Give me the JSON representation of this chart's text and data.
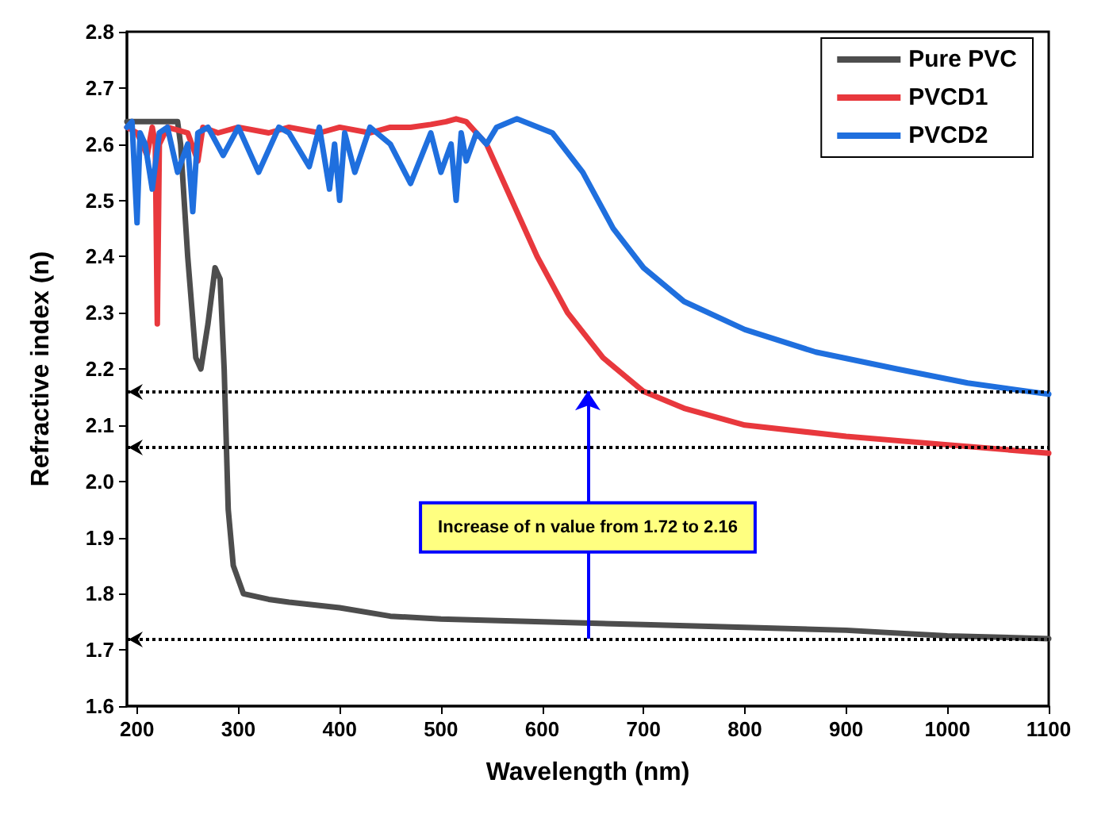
{
  "chart_data": {
    "type": "line",
    "xlabel": "Wavelength (nm)",
    "ylabel": "Refractive index (n)",
    "xlim": [
      190,
      1100
    ],
    "xticks": [
      200,
      300,
      400,
      500,
      600,
      700,
      800,
      900,
      1000,
      1100
    ],
    "ylim": [
      1.6,
      2.8
    ],
    "yticks": [
      1.6,
      1.7,
      1.8,
      1.9,
      {
        "value": 2,
        "label": "2.0"
      },
      2.1,
      2.2,
      2.3,
      2.4,
      2.5,
      2.6,
      2.7,
      2.8
    ],
    "grid": false,
    "legend": "top right",
    "marker": "none",
    "line_style": "solid",
    "series": [
      {
        "name": "Pure PVC",
        "color": "#4d4d4d",
        "x": [
          190,
          200,
          215,
          230,
          240,
          243,
          250,
          258,
          263,
          270,
          277,
          282,
          286,
          290,
          295,
          305,
          330,
          350,
          400,
          450,
          500,
          600,
          700,
          800,
          900,
          1000,
          1100
        ],
        "values": [
          2.64,
          2.64,
          2.64,
          2.64,
          2.64,
          2.6,
          2.4,
          2.22,
          2.2,
          2.28,
          2.38,
          2.36,
          2.2,
          1.95,
          1.85,
          1.8,
          1.79,
          1.785,
          1.775,
          1.76,
          1.755,
          1.75,
          1.745,
          1.74,
          1.735,
          1.725,
          1.72
        ]
      },
      {
        "name": "PVCD1",
        "color": "#e8383d",
        "x": [
          190,
          200,
          210,
          215,
          218,
          220,
          222,
          230,
          250,
          260,
          265,
          280,
          300,
          330,
          350,
          380,
          400,
          430,
          450,
          470,
          490,
          505,
          515,
          525,
          535,
          545,
          570,
          595,
          625,
          660,
          700,
          740,
          800,
          900,
          1000,
          1100
        ],
        "values": [
          2.63,
          2.62,
          2.58,
          2.63,
          2.6,
          2.28,
          2.6,
          2.63,
          2.62,
          2.57,
          2.63,
          2.62,
          2.63,
          2.62,
          2.63,
          2.62,
          2.63,
          2.62,
          2.63,
          2.63,
          2.635,
          2.64,
          2.645,
          2.64,
          2.62,
          2.6,
          2.5,
          2.4,
          2.3,
          2.22,
          2.16,
          2.13,
          2.1,
          2.08,
          2.065,
          2.05
        ]
      },
      {
        "name": "PVCD2",
        "color": "#1f6fde",
        "x": [
          190,
          195,
          200,
          203,
          208,
          215,
          222,
          230,
          240,
          250,
          255,
          260,
          270,
          285,
          300,
          320,
          340,
          350,
          370,
          380,
          390,
          395,
          400,
          405,
          415,
          430,
          450,
          470,
          490,
          500,
          510,
          515,
          520,
          525,
          535,
          545,
          555,
          575,
          610,
          640,
          670,
          700,
          740,
          800,
          870,
          950,
          1020,
          1100
        ],
        "values": [
          2.63,
          2.64,
          2.46,
          2.62,
          2.6,
          2.52,
          2.62,
          2.63,
          2.55,
          2.6,
          2.48,
          2.62,
          2.63,
          2.58,
          2.63,
          2.55,
          2.63,
          2.62,
          2.56,
          2.63,
          2.52,
          2.6,
          2.5,
          2.62,
          2.55,
          2.63,
          2.6,
          2.53,
          2.62,
          2.55,
          2.6,
          2.5,
          2.62,
          2.57,
          2.62,
          2.6,
          2.63,
          2.645,
          2.62,
          2.55,
          2.45,
          2.38,
          2.32,
          2.27,
          2.23,
          2.2,
          2.175,
          2.155
        ]
      }
    ],
    "ref_lines": [
      {
        "axis": "y",
        "value": 2.16,
        "color": "#000000",
        "line_style": "dotted"
      },
      {
        "axis": "y",
        "value": 2.06,
        "color": "#000000",
        "line_style": "dotted"
      },
      {
        "axis": "y",
        "value": 1.72,
        "color": "#000000",
        "line_style": "dotted"
      }
    ],
    "annotations": [
      "Increase of n value from 1.72 to 2.16"
    ]
  }
}
